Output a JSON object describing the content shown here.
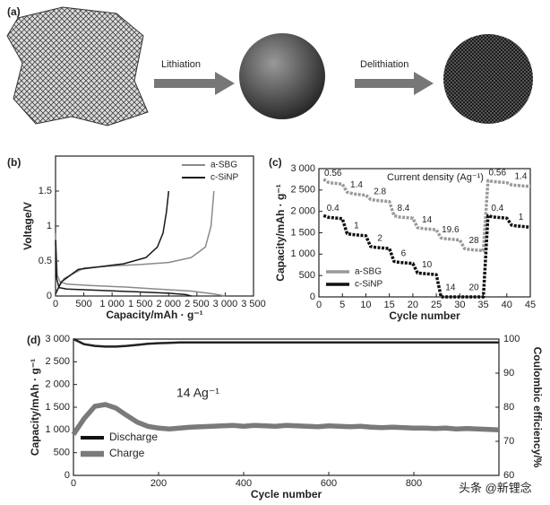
{
  "panel_a": {
    "label": "(a)",
    "steps": [
      "Lithiation",
      "Delithiation"
    ]
  },
  "chart_data": [
    {
      "type": "line",
      "label": "(b)",
      "xlabel": "Capacity/mAh · g⁻¹",
      "ylabel": "Voltage/V",
      "xlim": [
        0,
        3500
      ],
      "xticks": [
        0,
        500,
        {
          "value": 1000,
          "label": "1 000"
        },
        {
          "value": 1500,
          "label": "1 500"
        },
        {
          "value": 2000,
          "label": "2 000"
        },
        {
          "value": 2500,
          "label": "2 500"
        },
        {
          "value": 3000,
          "label": "3 000"
        },
        {
          "value": 3500,
          "label": "3 500"
        }
      ],
      "ylim": [
        0,
        2
      ],
      "yticks": [
        0,
        0.5,
        1,
        1.5
      ],
      "legend": "upper right",
      "series": [
        {
          "name": "a-SBG",
          "color": "#8a8a8a",
          "x": [
            0,
            30,
            80,
            200,
            600,
            1200,
            1800,
            2400,
            2800,
            3000,
            null,
            0,
            150,
            500,
            1000,
            1500,
            2000,
            2400,
            2650,
            2750,
            2800
          ],
          "values": [
            0.9,
            0.3,
            0.2,
            0.17,
            0.15,
            0.13,
            0.1,
            0.07,
            0.03,
            0,
            null,
            0.05,
            0.25,
            0.4,
            0.43,
            0.45,
            0.48,
            0.55,
            0.7,
            1.0,
            1.5
          ]
        },
        {
          "name": "c-SiNP",
          "color": "#1a1a1a",
          "x": [
            0,
            20,
            60,
            200,
            800,
            1400,
            2000,
            2300,
            2400,
            null,
            0,
            100,
            400,
            800,
            1200,
            1600,
            1800,
            1900,
            1960,
            2000
          ],
          "values": [
            0.8,
            0.25,
            0.12,
            0.1,
            0.08,
            0.06,
            0.04,
            0.02,
            0,
            null,
            0.03,
            0.2,
            0.38,
            0.42,
            0.46,
            0.55,
            0.7,
            0.9,
            1.2,
            1.5
          ]
        }
      ]
    },
    {
      "type": "line",
      "label": "(c)",
      "xlabel": "Cycle number",
      "ylabel": "Capacity/mAh · g⁻¹",
      "annotation_title": "Current density (Ag⁻¹)",
      "xlim": [
        0,
        45
      ],
      "xticks": [
        0,
        5,
        10,
        15,
        20,
        25,
        30,
        35,
        40,
        45
      ],
      "ylim": [
        0,
        3000
      ],
      "yticks": [
        0,
        500,
        {
          "value": 1000,
          "label": "1 000"
        },
        {
          "value": 1500,
          "label": "1 500"
        },
        {
          "value": 2000,
          "label": "2 000"
        },
        {
          "value": 2500,
          "label": "2 500"
        },
        {
          "value": 3000,
          "label": "3 000"
        }
      ],
      "legend": "lower left",
      "x": [
        1,
        2,
        3,
        4,
        5,
        6,
        7,
        8,
        9,
        10,
        11,
        12,
        13,
        14,
        15,
        16,
        17,
        18,
        19,
        20,
        21,
        22,
        23,
        24,
        25,
        26,
        27,
        28,
        29,
        30,
        31,
        32,
        33,
        34,
        35,
        36,
        37,
        38,
        39,
        40,
        41,
        42,
        43,
        44,
        45
      ],
      "series": [
        {
          "name": "a-SBG",
          "color": "#9a9a9a",
          "current_density": [
            0.56,
            1.4,
            2.8,
            8.4,
            14,
            19.6,
            28,
            0.56,
            1.4
          ],
          "values": [
            2750,
            2680,
            2660,
            2650,
            2640,
            2450,
            2420,
            2400,
            2390,
            2380,
            2280,
            2260,
            2250,
            2240,
            2230,
            1900,
            1870,
            1860,
            1850,
            1840,
            1620,
            1600,
            1590,
            1580,
            1570,
            1380,
            1360,
            1350,
            1340,
            1330,
            1130,
            1110,
            1100,
            1090,
            1080,
            2720,
            2700,
            2690,
            2680,
            2670,
            2620,
            2610,
            2600,
            2590,
            2580
          ]
        },
        {
          "name": "c-SiNP",
          "color": "#111111",
          "current_density": [
            0.4,
            1,
            2,
            6,
            10,
            14,
            20,
            0.4,
            1
          ],
          "values": [
            1900,
            1860,
            1850,
            1840,
            1830,
            1480,
            1460,
            1450,
            1440,
            1430,
            1180,
            1160,
            1150,
            1140,
            1130,
            830,
            810,
            800,
            790,
            780,
            560,
            550,
            540,
            530,
            520,
            0,
            0,
            0,
            0,
            0,
            0,
            0,
            0,
            0,
            0,
            1900,
            1870,
            1860,
            1850,
            1840,
            1680,
            1660,
            1650,
            1640,
            1630
          ]
        }
      ]
    },
    {
      "type": "line",
      "label": "(d)",
      "xlabel": "Cycle number",
      "ylabel": "Capacity/mAh · g⁻¹",
      "y2label": "Coulombic efficiency/%",
      "annotation": "14 Ag⁻¹",
      "xlim": [
        0,
        1000
      ],
      "xticks": [
        0,
        200,
        400,
        600,
        800
      ],
      "ylim": [
        0,
        3000
      ],
      "yticks": [
        0,
        500,
        {
          "value": 1000,
          "label": "1 000"
        },
        {
          "value": 1500,
          "label": "1 500"
        },
        {
          "value": 2000,
          "label": "2 000"
        },
        {
          "value": 2500,
          "label": "2 500"
        },
        {
          "value": 3000,
          "label": "3 000"
        }
      ],
      "y2lim": [
        60,
        100
      ],
      "y2ticks": [
        60,
        70,
        80,
        90,
        100
      ],
      "legend": "lower left",
      "x": [
        0,
        25,
        50,
        75,
        100,
        125,
        150,
        175,
        200,
        225,
        250,
        275,
        300,
        325,
        350,
        375,
        400,
        425,
        450,
        475,
        500,
        525,
        550,
        575,
        600,
        625,
        650,
        675,
        700,
        725,
        750,
        775,
        800,
        825,
        850,
        875,
        900,
        925,
        950,
        975,
        1000
      ],
      "series": [
        {
          "name": "Discharge",
          "color": "#111111",
          "values": [
            950,
            1280,
            1540,
            1580,
            1500,
            1340,
            1190,
            1100,
            1060,
            1040,
            1060,
            1080,
            1090,
            1100,
            1110,
            1120,
            1100,
            1120,
            1110,
            1100,
            1120,
            1110,
            1100,
            1090,
            1110,
            1100,
            1090,
            1100,
            1080,
            1070,
            1080,
            1070,
            1060,
            1060,
            1050,
            1060,
            1040,
            1050,
            1040,
            1030,
            1020
          ]
        },
        {
          "name": "Charge",
          "color": "#7a7a7a",
          "values": [
            900,
            1250,
            1520,
            1560,
            1480,
            1320,
            1170,
            1080,
            1040,
            1020,
            1040,
            1060,
            1070,
            1080,
            1090,
            1100,
            1080,
            1100,
            1090,
            1080,
            1100,
            1090,
            1080,
            1070,
            1090,
            1080,
            1070,
            1080,
            1060,
            1050,
            1060,
            1050,
            1040,
            1040,
            1030,
            1040,
            1020,
            1030,
            1020,
            1010,
            1000
          ]
        },
        {
          "axis": "y2",
          "color": "#222222",
          "values": [
            100,
            98.5,
            98,
            97.8,
            97.8,
            98,
            98.3,
            98.6,
            98.8,
            98.9,
            99,
            99,
            99,
            99,
            99,
            99,
            99,
            99,
            99,
            99,
            99,
            99,
            99,
            99,
            99,
            99,
            99,
            99,
            99,
            99,
            99,
            99,
            99,
            99,
            99,
            99,
            99,
            99,
            99,
            99,
            99
          ]
        }
      ]
    }
  ],
  "watermark": "头条 @新锂念"
}
